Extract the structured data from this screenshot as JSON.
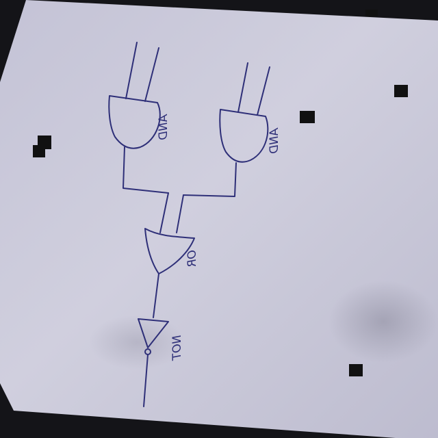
{
  "diagram": {
    "gates": [
      {
        "id": "and-left",
        "type": "AND",
        "label": "AND"
      },
      {
        "id": "and-right",
        "type": "AND",
        "label": "AND"
      },
      {
        "id": "or-gate",
        "type": "OR",
        "label": "OR"
      },
      {
        "id": "not-gate",
        "type": "NOT",
        "label": "NOT"
      }
    ],
    "connections": [
      {
        "from": "and-left",
        "to": "or-gate"
      },
      {
        "from": "and-right",
        "to": "or-gate"
      },
      {
        "from": "or-gate",
        "to": "not-gate"
      }
    ],
    "ink_color": "#2e2f78",
    "paper_color": "#c9c8d8",
    "background_color": "#141418"
  }
}
